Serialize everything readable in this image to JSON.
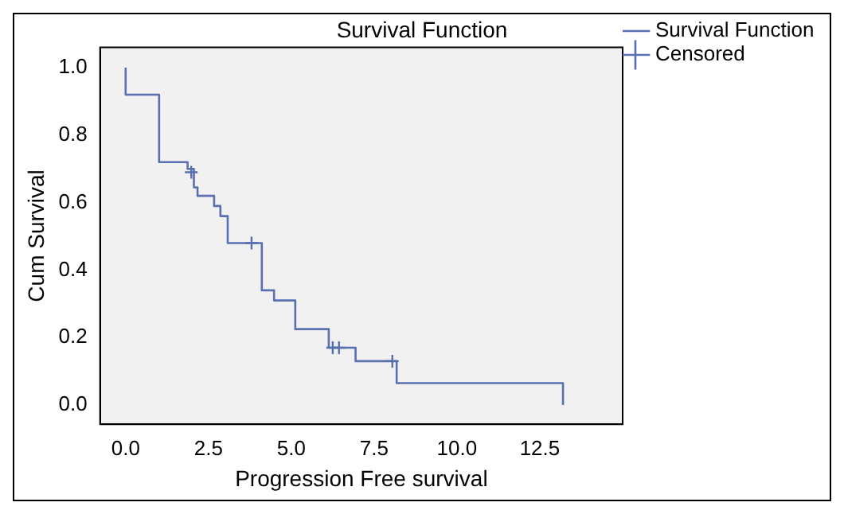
{
  "chart_data": {
    "type": "step",
    "title": "Survival Function",
    "xlabel": "Progression Free survival",
    "ylabel": "Cum Survival",
    "xlim": [
      -0.77,
      15.0
    ],
    "xticks": [
      {
        "value": 0,
        "label": "0.0"
      },
      {
        "value": 2.5,
        "label": "2.5"
      },
      {
        "value": 5,
        "label": "5.0"
      },
      {
        "value": 7.5,
        "label": "7.5"
      },
      {
        "value": 10,
        "label": "10.0"
      },
      {
        "value": 12.5,
        "label": "12.5"
      }
    ],
    "ylim": [
      -0.057,
      1.06
    ],
    "yticks": [
      {
        "value": 0,
        "label": "0.0"
      },
      {
        "value": 0.2,
        "label": "0.2"
      },
      {
        "value": 0.4,
        "label": "0.4"
      },
      {
        "value": 0.6,
        "label": "0.6"
      },
      {
        "value": 0.8,
        "label": "0.8"
      },
      {
        "value": 1,
        "label": "1.0"
      }
    ],
    "grid": false,
    "legend": "top right",
    "series": [
      {
        "name": "Survival Function",
        "color": "#5a6fb0",
        "marker": "none",
        "x": [
          0,
          0,
          1.01,
          1.87,
          2.06,
          2.17,
          2.67,
          2.86,
          3.08,
          4.11,
          4.48,
          5.12,
          6.13,
          6.94,
          8.18,
          13.2,
          13.2
        ],
        "values": [
          1.0,
          0.92,
          0.72,
          0.7,
          0.645,
          0.62,
          0.59,
          0.56,
          0.48,
          0.34,
          0.31,
          0.225,
          0.17,
          0.13,
          0.065,
          0.065,
          0.0
        ]
      },
      {
        "name": "Censored",
        "type": "scatter",
        "color": "#5a6fb0",
        "marker": "cross",
        "x": [
          1.98,
          3.8,
          6.25,
          6.44,
          8.05
        ],
        "values": [
          0.69,
          0.48,
          0.17,
          0.17,
          0.13
        ]
      }
    ]
  }
}
